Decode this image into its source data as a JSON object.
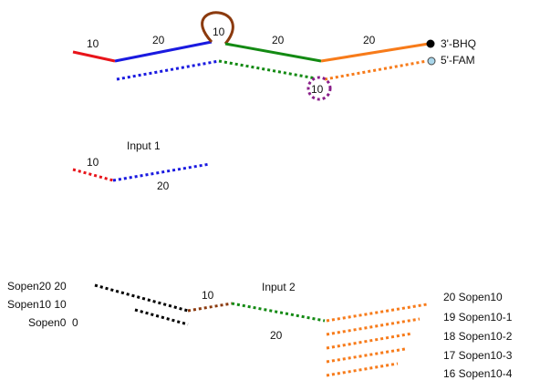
{
  "colors": {
    "red": "#e8141a",
    "blue": "#1a1ae0",
    "brown": "#8b3a0e",
    "green": "#138a13",
    "orange": "#f77b1a",
    "purple": "#8a1f8a",
    "black": "#000000",
    "fam_marker": "#a9d6ea"
  },
  "top": {
    "len_red": "10",
    "len_blue": "20",
    "len_loop": "10",
    "len_green": "20",
    "len_orange": "20",
    "label_bhq": "3'-BHQ",
    "label_fam": "5'-FAM",
    "len_bulge": "10"
  },
  "input1": {
    "title": "Input 1",
    "len_red": "10",
    "len_blue": "20"
  },
  "input2": {
    "title": "Input 2",
    "len_toehold": "10",
    "len_green": "20",
    "sopen_labels": [
      "Sopen20 20",
      "Sopen10 10",
      "Sopen0  0"
    ],
    "orange_labels": [
      "20 Sopen10",
      "19 Sopen10-1",
      "18 Sopen10-2",
      "17 Sopen10-3",
      "16 Sopen10-4"
    ]
  }
}
